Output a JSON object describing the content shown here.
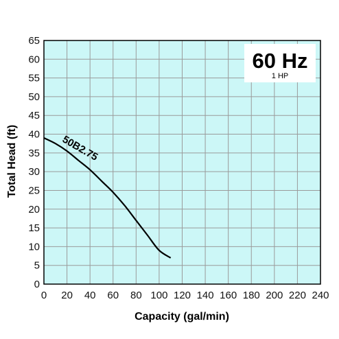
{
  "chart_data": {
    "type": "line",
    "title": "60 Hz",
    "subtitle": "1 HP",
    "xlabel": "Capacity (gal/min)",
    "ylabel": "Total Head (ft)",
    "xlim": [
      0,
      240
    ],
    "ylim": [
      0,
      65
    ],
    "xticks": [
      0,
      20,
      40,
      60,
      80,
      100,
      120,
      140,
      160,
      180,
      200,
      220,
      240
    ],
    "yticks": [
      0,
      5,
      10,
      15,
      20,
      25,
      30,
      35,
      40,
      45,
      50,
      55,
      60,
      65
    ],
    "grid": true,
    "background_color": "#ccf7f7",
    "grid_color": "#9a9a9a",
    "series": [
      {
        "name": "50B2.75",
        "x": [
          0,
          10,
          20,
          30,
          40,
          50,
          60,
          70,
          80,
          90,
          100,
          110
        ],
        "y": [
          39,
          37.5,
          35.5,
          33,
          30.5,
          27.5,
          24.5,
          21,
          17,
          13,
          9,
          7
        ]
      }
    ]
  }
}
